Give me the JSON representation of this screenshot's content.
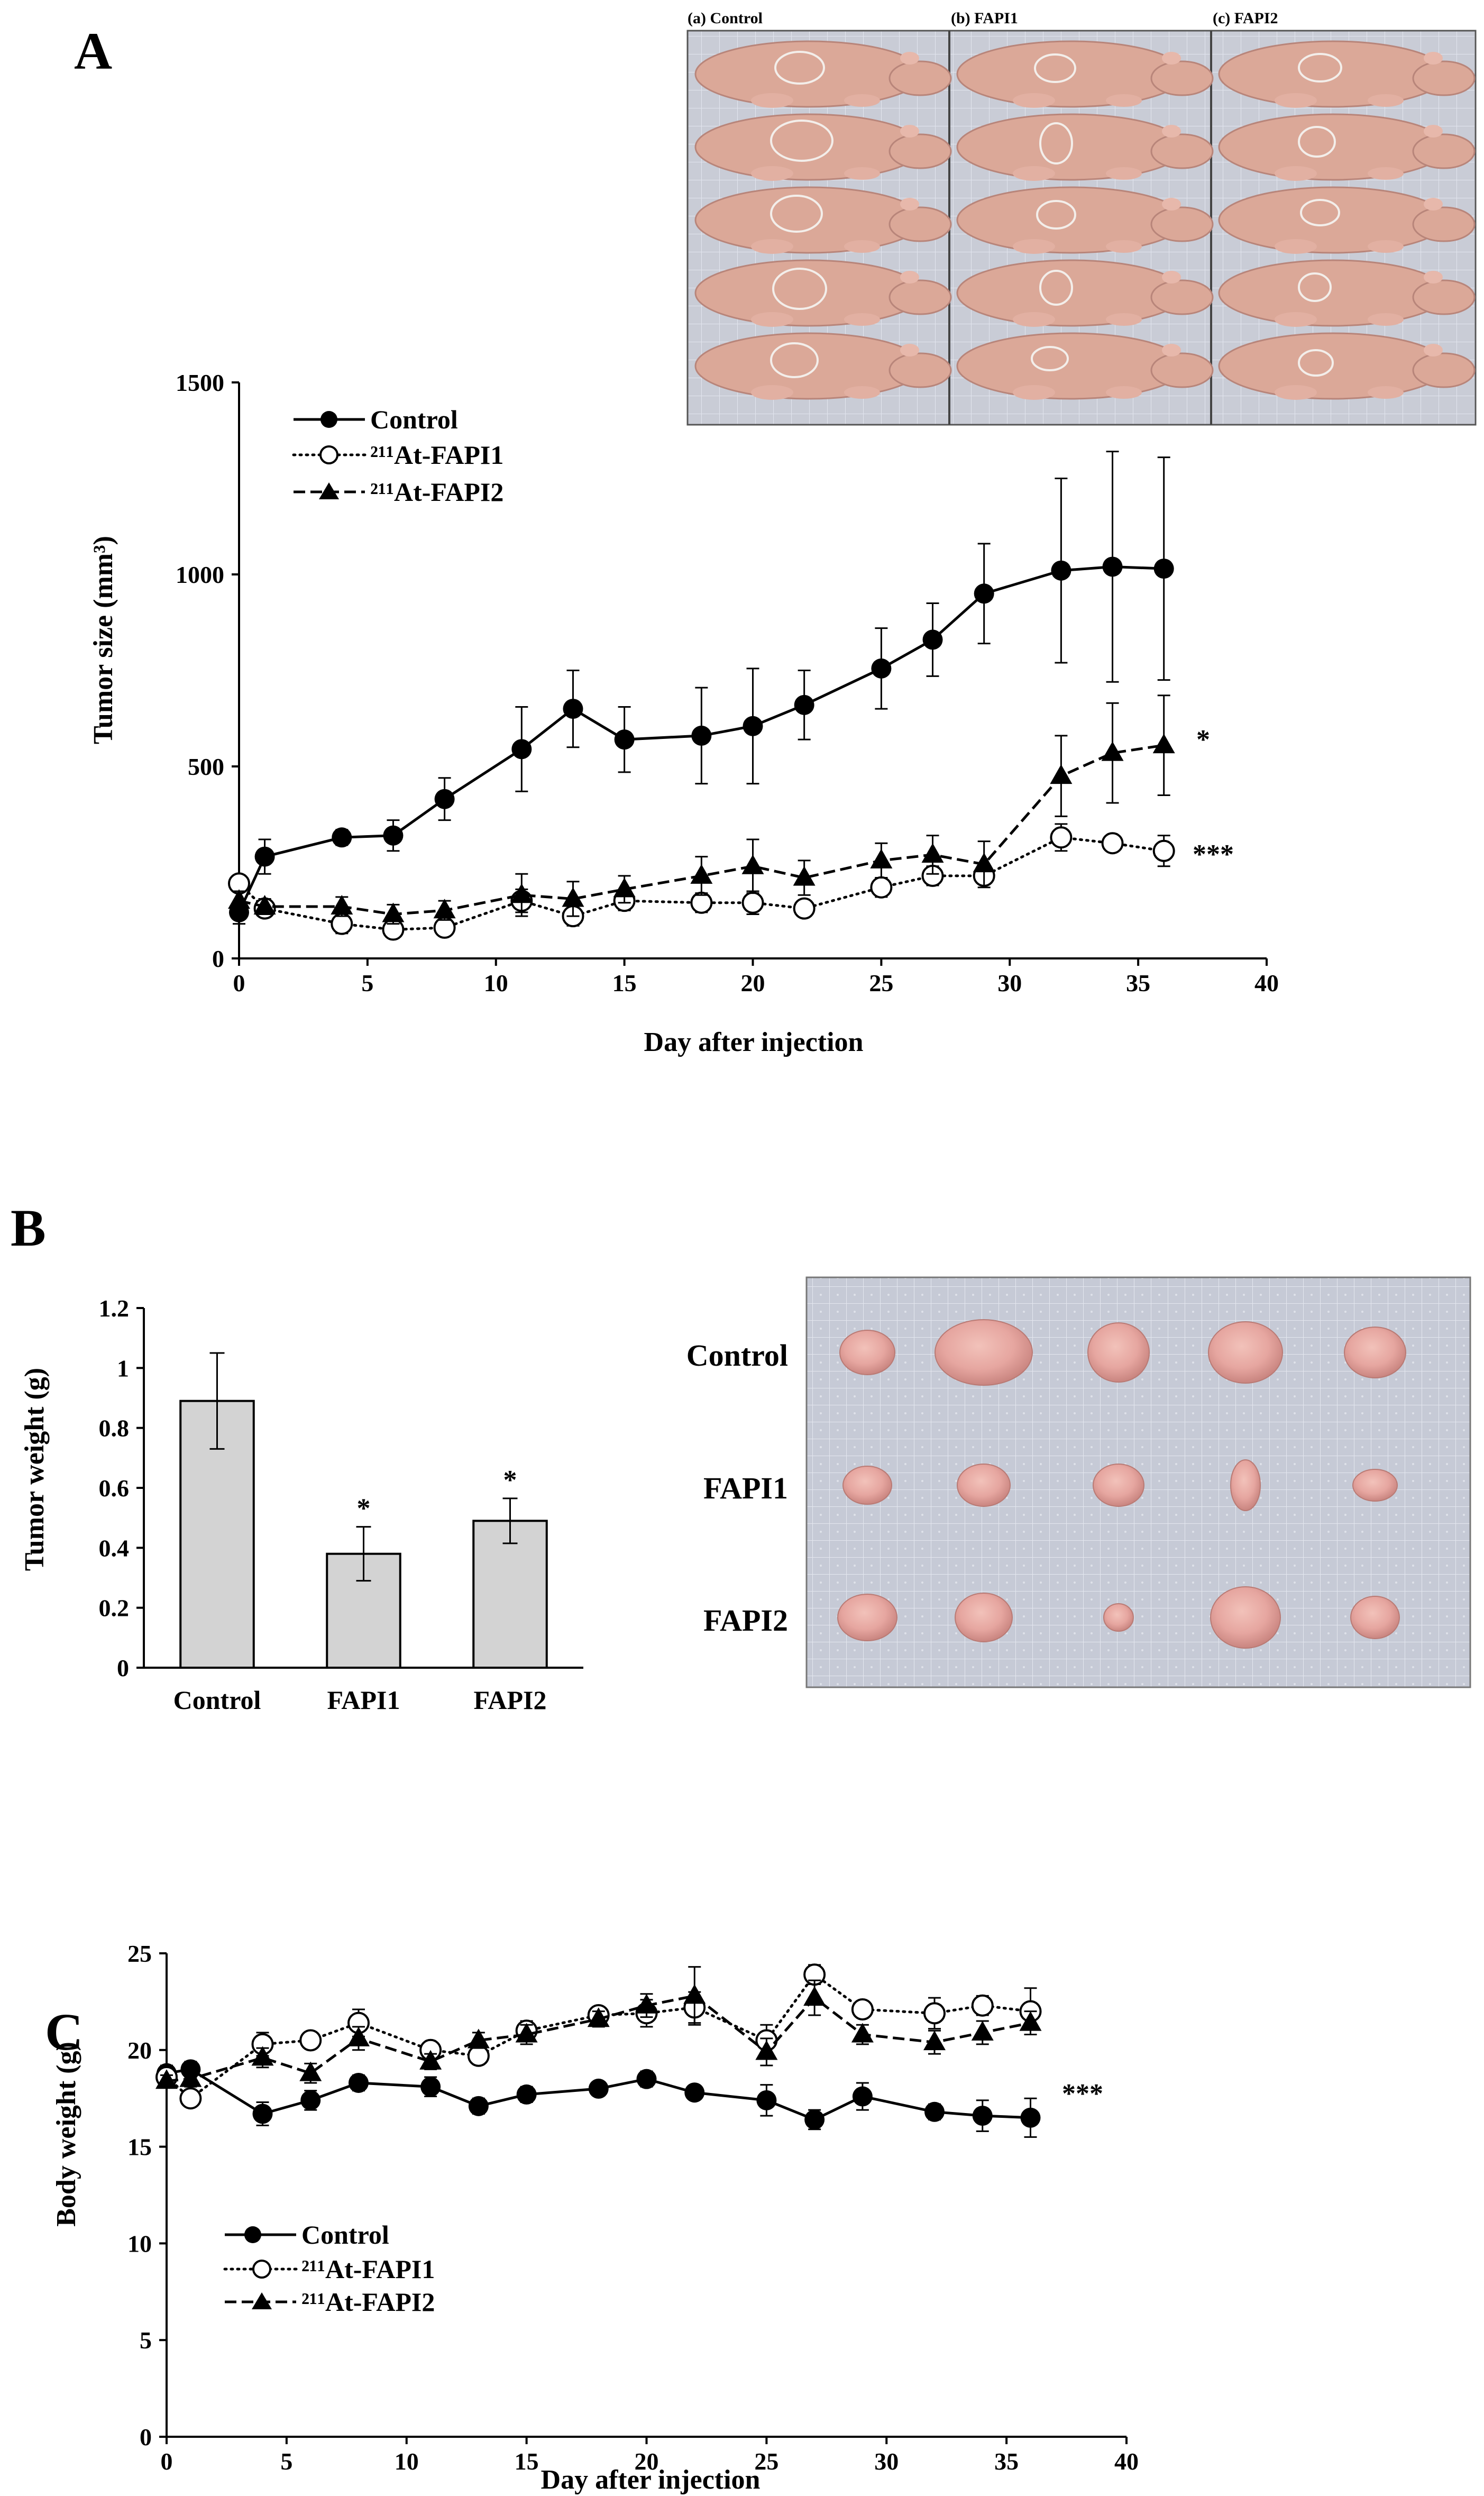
{
  "panels": {
    "A": "A",
    "B": "B",
    "C": "C"
  },
  "colors": {
    "bar_fill": "#d3d3d3",
    "photo_bg": "#c9ccd6",
    "mouse_skin": "#dba898",
    "tumor_tissue": "#e6a6a0",
    "outline": "#f3eeea"
  },
  "photos": {
    "mice_labels": [
      "(a) Control",
      "(b) FAPI1",
      "(c) FAPI2"
    ],
    "tumor_rows": [
      "Control",
      "FAPI1",
      "FAPI2"
    ]
  },
  "chart_data": [
    {
      "id": "A",
      "type": "line",
      "ylabel": "Tumor size (mm³)",
      "xlabel": "Day after injection",
      "xlim": [
        0,
        40
      ],
      "ylim": [
        0,
        1500
      ],
      "xticks": [
        "0",
        "5",
        "10",
        "15",
        "20",
        "25",
        "30",
        "35",
        "40"
      ],
      "yticks": [
        "0",
        "500",
        "1000",
        "1500"
      ],
      "series": [
        {
          "name": "Control",
          "marker": "filled-circle",
          "line": "solid",
          "x": [
            0,
            1,
            4,
            6,
            8,
            11,
            13,
            15,
            18,
            20,
            22,
            25,
            27,
            29,
            32,
            34,
            36
          ],
          "y": [
            120,
            265,
            315,
            320,
            415,
            545,
            650,
            570,
            580,
            605,
            660,
            755,
            830,
            950,
            1010,
            1020,
            1015
          ],
          "err": [
            30,
            45,
            20,
            40,
            55,
            110,
            100,
            85,
            125,
            150,
            90,
            105,
            95,
            130,
            240,
            300,
            290
          ],
          "significance": ""
        },
        {
          "name": "²¹¹At-FAPI1",
          "marker": "open-circle",
          "line": "dotted",
          "x": [
            0,
            1,
            4,
            6,
            8,
            11,
            13,
            15,
            18,
            20,
            22,
            25,
            27,
            29,
            32,
            34,
            36
          ],
          "y": [
            195,
            130,
            90,
            75,
            80,
            150,
            110,
            150,
            145,
            145,
            130,
            185,
            215,
            215,
            315,
            300,
            280
          ],
          "err": [
            20,
            15,
            25,
            20,
            20,
            30,
            25,
            25,
            25,
            30,
            20,
            25,
            25,
            20,
            35,
            20,
            40
          ],
          "significance": "***"
        },
        {
          "name": "²¹¹At-FAPI2",
          "marker": "filled-triangle",
          "line": "dashed",
          "x": [
            0,
            1,
            4,
            6,
            8,
            11,
            13,
            15,
            18,
            20,
            22,
            25,
            27,
            29,
            32,
            34,
            36
          ],
          "y": [
            150,
            135,
            135,
            115,
            125,
            165,
            155,
            180,
            215,
            240,
            210,
            255,
            270,
            245,
            475,
            535,
            555
          ],
          "err": [
            25,
            20,
            25,
            25,
            25,
            55,
            45,
            35,
            50,
            70,
            45,
            45,
            50,
            60,
            105,
            130,
            130
          ],
          "significance": "*"
        }
      ]
    },
    {
      "id": "B",
      "type": "bar",
      "ylabel": "Tumor weight (g)",
      "categories": [
        "Control",
        "FAPI1",
        "FAPI2"
      ],
      "values": [
        0.89,
        0.38,
        0.49
      ],
      "err": [
        0.16,
        0.09,
        0.075
      ],
      "significance": [
        "",
        "*",
        "*"
      ],
      "ylim": [
        0,
        1.2
      ],
      "yticks": [
        "0",
        "0.2",
        "0.4",
        "0.6",
        "0.8",
        "1",
        "1.2"
      ]
    },
    {
      "id": "C",
      "type": "line",
      "ylabel": "Body weight (g)",
      "xlabel": "Day after injection",
      "xlim": [
        0,
        40
      ],
      "ylim": [
        0,
        25
      ],
      "xticks": [
        "0",
        "5",
        "10",
        "15",
        "20",
        "25",
        "30",
        "35",
        "40"
      ],
      "yticks": [
        "0",
        "5",
        "10",
        "15",
        "20",
        "25"
      ],
      "series": [
        {
          "name": "Control",
          "marker": "filled-circle",
          "line": "solid",
          "x": [
            0,
            1,
            4,
            6,
            8,
            11,
            13,
            15,
            18,
            20,
            22,
            25,
            27,
            29,
            32,
            34,
            36
          ],
          "y": [
            18.8,
            19.0,
            16.7,
            17.4,
            18.3,
            18.1,
            17.1,
            17.7,
            18.0,
            18.5,
            17.8,
            17.4,
            16.4,
            17.6,
            16.8,
            16.6,
            16.5
          ],
          "err": [
            0.4,
            0.4,
            0.6,
            0.5,
            0.4,
            0.5,
            0.4,
            0.4,
            0.3,
            0.4,
            0.3,
            0.8,
            0.5,
            0.7,
            0.4,
            0.8,
            1.0
          ],
          "significance": "***"
        },
        {
          "name": "²¹¹At-FAPI1",
          "marker": "open-circle",
          "line": "dotted",
          "x": [
            0,
            1,
            4,
            6,
            8,
            11,
            13,
            15,
            18,
            20,
            22,
            25,
            27,
            29,
            32,
            34,
            36
          ],
          "y": [
            18.6,
            17.5,
            20.3,
            20.5,
            21.4,
            20.0,
            19.7,
            21.0,
            21.8,
            21.9,
            22.2,
            20.5,
            23.9,
            22.1,
            21.9,
            22.3,
            22.0
          ],
          "err": [
            0.3,
            0.4,
            0.6,
            0.4,
            0.7,
            0.4,
            0.4,
            0.5,
            0.4,
            0.7,
            0.8,
            0.8,
            0.5,
            0.4,
            0.8,
            0.5,
            1.2
          ],
          "significance": ""
        },
        {
          "name": "²¹¹At-FAPI2",
          "marker": "filled-triangle",
          "line": "dashed",
          "x": [
            0,
            1,
            4,
            6,
            8,
            11,
            13,
            15,
            18,
            20,
            22,
            25,
            27,
            29,
            32,
            34,
            36
          ],
          "y": [
            18.4,
            18.5,
            19.6,
            18.8,
            20.6,
            19.4,
            20.5,
            20.8,
            21.6,
            22.3,
            22.8,
            19.9,
            22.7,
            20.8,
            20.4,
            20.9,
            21.4
          ],
          "err": [
            0.3,
            0.4,
            0.5,
            0.5,
            0.6,
            0.4,
            0.4,
            0.5,
            0.4,
            0.6,
            1.5,
            0.7,
            0.9,
            0.5,
            0.6,
            0.6,
            0.6
          ],
          "significance": ""
        }
      ]
    }
  ]
}
